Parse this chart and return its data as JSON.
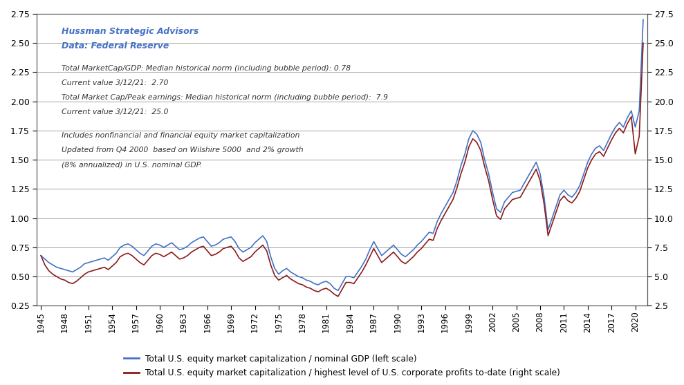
{
  "title_line1": "Hussman Strategic Advisors",
  "title_line2": "Data: Federal Reserve",
  "annotation1": "Total MarketCap/GDP: Median historical norm (including bubble period): 0.78",
  "annotation2": "Current value 3/12/21:  2.70",
  "annotation3": "Total Market Cap/Peak earnings: Median historical norm (including bubble period):  7.9",
  "annotation4": "Current value 3/12/21:  25.0",
  "annotation5": "Includes nonfinancial and financial equity market capitalization",
  "annotation6": "Updated from Q4 2000  based on Wilshire 5000  and 2% growth",
  "annotation7": "(8% annualized) in U.S. nominal GDP.",
  "legend1": "Total U.S. equity market capitalization / nominal GDP (left scale)",
  "legend2": "Total U.S. equity market capitalization / highest level of U.S. corporate profits to-date (right scale)",
  "blue_color": "#4472C4",
  "red_color": "#8B1A1A",
  "ylim_left": [
    0.25,
    2.75
  ],
  "ylim_right": [
    2.5,
    27.5
  ],
  "yticks_left": [
    0.25,
    0.5,
    0.75,
    1.0,
    1.25,
    1.5,
    1.75,
    2.0,
    2.25,
    2.5,
    2.75
  ],
  "yticks_right": [
    2.5,
    5.0,
    7.5,
    10.0,
    12.5,
    15.0,
    17.5,
    20.0,
    22.5,
    25.0,
    27.5
  ],
  "xtick_positions": [
    1945,
    1948,
    1951,
    1954,
    1957,
    1960,
    1963,
    1966,
    1969,
    1972,
    1975,
    1978,
    1981,
    1984,
    1987,
    1990,
    1993,
    1996,
    1999,
    2002,
    2005,
    2008,
    2011,
    2014,
    2017,
    2020
  ],
  "xtick_labels": [
    "1945",
    "1948",
    "1951",
    "1954",
    "1957",
    "1960",
    "1963",
    "1966",
    "1969",
    "1972",
    "1975",
    "1978",
    "1981",
    "1984",
    "1987",
    "1990",
    "1993",
    "1996",
    "1999",
    "2002",
    "2005",
    "2008",
    "2011",
    "2014",
    "2017",
    "2020"
  ],
  "background_color": "#FFFFFF",
  "grid_color": "#A0A0A0",
  "years_gdp": [
    1945.0,
    1945.5,
    1946.0,
    1946.5,
    1947.0,
    1947.5,
    1948.0,
    1948.5,
    1949.0,
    1949.5,
    1950.0,
    1950.5,
    1951.0,
    1951.5,
    1952.0,
    1952.5,
    1953.0,
    1953.5,
    1954.0,
    1954.5,
    1955.0,
    1955.5,
    1956.0,
    1956.5,
    1957.0,
    1957.5,
    1958.0,
    1958.5,
    1959.0,
    1959.5,
    1960.0,
    1960.5,
    1961.0,
    1961.5,
    1962.0,
    1962.5,
    1963.0,
    1963.5,
    1964.0,
    1964.5,
    1965.0,
    1965.5,
    1966.0,
    1966.5,
    1967.0,
    1967.5,
    1968.0,
    1968.5,
    1969.0,
    1969.5,
    1970.0,
    1970.5,
    1971.0,
    1971.5,
    1972.0,
    1972.5,
    1973.0,
    1973.5,
    1974.0,
    1974.5,
    1975.0,
    1975.5,
    1976.0,
    1976.5,
    1977.0,
    1977.5,
    1978.0,
    1978.5,
    1979.0,
    1979.5,
    1980.0,
    1980.5,
    1981.0,
    1981.5,
    1982.0,
    1982.5,
    1983.0,
    1983.5,
    1984.0,
    1984.5,
    1985.0,
    1985.5,
    1986.0,
    1986.5,
    1987.0,
    1987.5,
    1988.0,
    1988.5,
    1989.0,
    1989.5,
    1990.0,
    1990.5,
    1991.0,
    1991.5,
    1992.0,
    1992.5,
    1993.0,
    1993.5,
    1994.0,
    1994.5,
    1995.0,
    1995.5,
    1996.0,
    1996.5,
    1997.0,
    1997.5,
    1998.0,
    1998.5,
    1999.0,
    1999.5,
    2000.0,
    2000.5,
    2001.0,
    2001.5,
    2002.0,
    2002.5,
    2003.0,
    2003.5,
    2004.0,
    2004.5,
    2005.0,
    2005.5,
    2006.0,
    2006.5,
    2007.0,
    2007.5,
    2008.0,
    2008.5,
    2009.0,
    2009.5,
    2010.0,
    2010.5,
    2011.0,
    2011.5,
    2012.0,
    2012.5,
    2013.0,
    2013.5,
    2014.0,
    2014.5,
    2015.0,
    2015.5,
    2016.0,
    2016.5,
    2017.0,
    2017.5,
    2018.0,
    2018.5,
    2019.0,
    2019.5,
    2020.0,
    2020.5,
    2021.0
  ],
  "vals_gdp": [
    0.68,
    0.65,
    0.62,
    0.6,
    0.58,
    0.57,
    0.56,
    0.55,
    0.54,
    0.56,
    0.58,
    0.61,
    0.62,
    0.63,
    0.64,
    0.65,
    0.66,
    0.64,
    0.67,
    0.7,
    0.75,
    0.77,
    0.78,
    0.76,
    0.73,
    0.7,
    0.68,
    0.72,
    0.76,
    0.78,
    0.77,
    0.75,
    0.77,
    0.79,
    0.76,
    0.73,
    0.74,
    0.76,
    0.79,
    0.81,
    0.83,
    0.84,
    0.8,
    0.76,
    0.77,
    0.79,
    0.82,
    0.83,
    0.84,
    0.8,
    0.74,
    0.71,
    0.73,
    0.75,
    0.79,
    0.82,
    0.85,
    0.8,
    0.67,
    0.57,
    0.52,
    0.55,
    0.57,
    0.54,
    0.52,
    0.5,
    0.49,
    0.47,
    0.46,
    0.44,
    0.43,
    0.45,
    0.46,
    0.44,
    0.4,
    0.38,
    0.44,
    0.5,
    0.5,
    0.49,
    0.54,
    0.59,
    0.65,
    0.73,
    0.8,
    0.74,
    0.68,
    0.71,
    0.74,
    0.77,
    0.73,
    0.69,
    0.67,
    0.7,
    0.73,
    0.77,
    0.8,
    0.84,
    0.88,
    0.87,
    0.97,
    1.04,
    1.1,
    1.16,
    1.22,
    1.32,
    1.45,
    1.55,
    1.68,
    1.75,
    1.72,
    1.65,
    1.5,
    1.38,
    1.22,
    1.08,
    1.05,
    1.14,
    1.18,
    1.22,
    1.23,
    1.24,
    1.3,
    1.36,
    1.42,
    1.48,
    1.38,
    1.18,
    0.9,
    1.0,
    1.1,
    1.2,
    1.24,
    1.2,
    1.18,
    1.22,
    1.28,
    1.38,
    1.48,
    1.55,
    1.6,
    1.62,
    1.58,
    1.65,
    1.72,
    1.78,
    1.82,
    1.78,
    1.86,
    1.92,
    1.78,
    1.92,
    2.7
  ],
  "vals_pe": [
    6.8,
    6.0,
    5.5,
    5.2,
    5.0,
    4.8,
    4.7,
    4.5,
    4.4,
    4.6,
    4.9,
    5.2,
    5.4,
    5.5,
    5.6,
    5.7,
    5.8,
    5.6,
    5.9,
    6.2,
    6.7,
    6.9,
    7.0,
    6.8,
    6.5,
    6.2,
    6.0,
    6.4,
    6.8,
    7.0,
    6.9,
    6.7,
    6.9,
    7.1,
    6.8,
    6.5,
    6.6,
    6.8,
    7.1,
    7.3,
    7.5,
    7.6,
    7.2,
    6.8,
    6.9,
    7.1,
    7.4,
    7.5,
    7.6,
    7.2,
    6.6,
    6.3,
    6.5,
    6.7,
    7.1,
    7.4,
    7.7,
    7.2,
    6.0,
    5.1,
    4.7,
    4.9,
    5.1,
    4.8,
    4.6,
    4.4,
    4.3,
    4.1,
    4.0,
    3.8,
    3.7,
    3.9,
    4.0,
    3.8,
    3.5,
    3.3,
    3.9,
    4.5,
    4.5,
    4.4,
    4.9,
    5.4,
    6.0,
    6.7,
    7.4,
    6.8,
    6.2,
    6.5,
    6.8,
    7.1,
    6.7,
    6.3,
    6.1,
    6.4,
    6.7,
    7.1,
    7.4,
    7.8,
    8.2,
    8.1,
    9.1,
    9.8,
    10.4,
    11.0,
    11.6,
    12.6,
    13.8,
    14.8,
    16.1,
    16.8,
    16.5,
    15.8,
    14.4,
    13.2,
    11.6,
    10.2,
    9.9,
    10.8,
    11.2,
    11.6,
    11.7,
    11.8,
    12.4,
    13.0,
    13.6,
    14.2,
    13.2,
    11.2,
    8.5,
    9.5,
    10.5,
    11.5,
    11.9,
    11.5,
    11.3,
    11.7,
    12.3,
    13.3,
    14.3,
    15.0,
    15.5,
    15.7,
    15.3,
    16.0,
    16.7,
    17.3,
    17.7,
    17.3,
    18.1,
    18.7,
    15.5,
    17.0,
    25.0
  ]
}
